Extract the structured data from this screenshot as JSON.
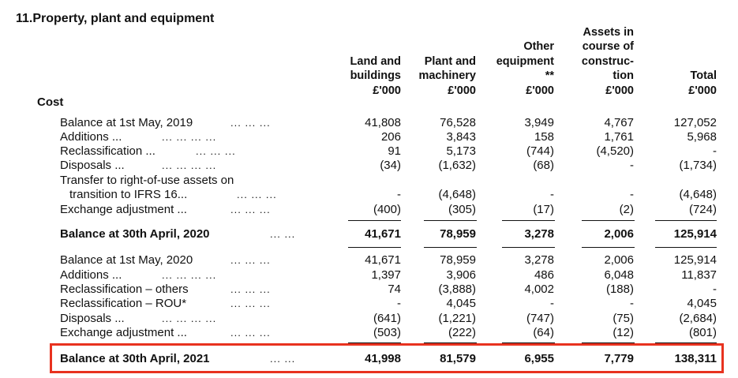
{
  "note_title": "11.Property, plant and equipment",
  "columns": [
    {
      "lines": [
        "Land and",
        "buildings",
        "£'000"
      ]
    },
    {
      "lines": [
        "Plant and",
        "machinery",
        "£'000"
      ]
    },
    {
      "lines": [
        "Other",
        "equipment",
        "**",
        "£'000"
      ]
    },
    {
      "lines": [
        "Assets in",
        "course of",
        "construc-",
        "tion",
        "£'000"
      ]
    },
    {
      "lines": [
        "Total",
        "£'000"
      ]
    }
  ],
  "section_heading": "Cost",
  "dots": {
    "d3": "...    ...    ...",
    "d2": "...    ...",
    "d4": "...    ...    ...    ..."
  },
  "rows": [
    {
      "label": "Balance at 1st May, 2019",
      "values": [
        "41,808",
        "76,528",
        "3,949",
        "4,767",
        "127,052"
      ]
    },
    {
      "label": "Additions ...",
      "values": [
        "206",
        "3,843",
        "158",
        "1,761",
        "5,968"
      ]
    },
    {
      "label": "Reclassification ...",
      "values": [
        "91",
        "5,173",
        "(744)",
        "(4,520)",
        "-"
      ]
    },
    {
      "label": "Disposals ...",
      "values": [
        "(34)",
        "(1,632)",
        "(68)",
        "-",
        "(1,734)"
      ]
    },
    {
      "label": "Transfer to right-of-use assets on",
      "values": [
        "",
        "",
        "",
        "",
        ""
      ]
    },
    {
      "label": "transition to IFRS 16...",
      "values": [
        "-",
        "(4,648)",
        "-",
        "-",
        "(4,648)"
      ]
    },
    {
      "label": "Exchange adjustment ...",
      "values": [
        "(400)",
        "(305)",
        "(17)",
        "(2)",
        "(724)"
      ]
    },
    {
      "label": "Balance at 30th April, 2020",
      "values": [
        "41,671",
        "78,959",
        "3,278",
        "2,006",
        "125,914"
      ]
    },
    {
      "label": "Balance at 1st May, 2020",
      "values": [
        "41,671",
        "78,959",
        "3,278",
        "2,006",
        "125,914"
      ]
    },
    {
      "label": "Additions ...",
      "values": [
        "1,397",
        "3,906",
        "486",
        "6,048",
        "11,837"
      ]
    },
    {
      "label": "Reclassification – others",
      "values": [
        "74",
        "(3,888)",
        "4,002",
        "(188)",
        "-"
      ]
    },
    {
      "label": "Reclassification – ROU*",
      "values": [
        "-",
        "4,045",
        "-",
        "-",
        "4,045"
      ]
    },
    {
      "label": "Disposals ...",
      "values": [
        "(641)",
        "(1,221)",
        "(747)",
        "(75)",
        "(2,684)"
      ]
    },
    {
      "label": "Exchange adjustment ...",
      "values": [
        "(503)",
        "(222)",
        "(64)",
        "(12)",
        "(801)"
      ]
    },
    {
      "label": "Balance at 30th April, 2021",
      "values": [
        "41,998",
        "81,579",
        "6,955",
        "7,779",
        "138,311"
      ]
    }
  ],
  "highlight_color": "#e8321f"
}
